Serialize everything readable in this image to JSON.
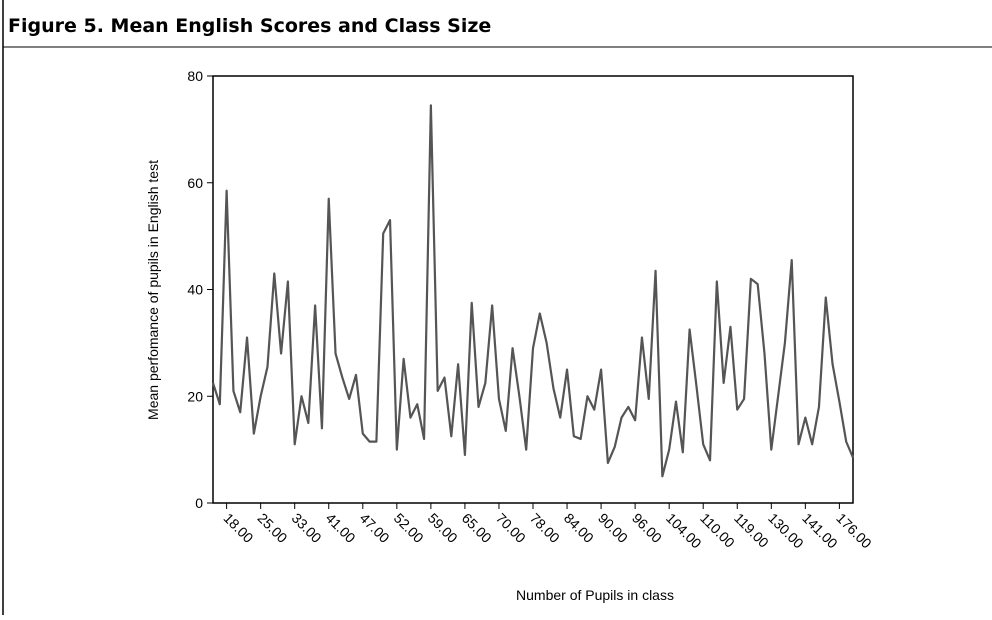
{
  "chart_data": {
    "type": "line",
    "title": "Figure 5.  Mean English Scores and Class Size",
    "xlabel": "Number of Pupils in class",
    "ylabel": "Mean perfomance of pupils in English test",
    "color": "#555555",
    "categories": [
      null,
      null,
      "18.00",
      null,
      null,
      null,
      null,
      "25.00",
      null,
      null,
      null,
      null,
      "33.00",
      null,
      null,
      null,
      null,
      "41.00",
      null,
      null,
      null,
      null,
      "47.00",
      null,
      null,
      null,
      null,
      "52.00",
      null,
      null,
      null,
      null,
      "59.00",
      null,
      null,
      null,
      null,
      "65.00",
      null,
      null,
      null,
      null,
      "70.00",
      null,
      null,
      null,
      null,
      "78.00",
      null,
      null,
      null,
      null,
      "84.00",
      null,
      null,
      null,
      null,
      "90.00",
      null,
      null,
      null,
      null,
      "96.00",
      null,
      null,
      null,
      null,
      "104.00",
      null,
      null,
      null,
      null,
      "110.00",
      null,
      null,
      null,
      null,
      "119.00",
      null,
      null,
      null,
      null,
      "130.00",
      null,
      null,
      null,
      null,
      "141.00",
      null,
      null,
      null,
      null,
      "176.00",
      null,
      null
    ],
    "values": [
      22.5,
      18.5,
      58.5,
      21,
      17,
      31,
      13,
      20,
      25.5,
      43,
      28,
      41.5,
      11,
      20,
      15,
      37,
      14,
      57,
      28,
      23.5,
      19.5,
      24,
      13,
      11.5,
      11.5,
      50.5,
      53,
      10,
      27,
      16,
      18.5,
      12,
      74.5,
      21,
      23.5,
      12.5,
      26,
      9,
      37.5,
      18,
      22.5,
      37,
      19.5,
      13.5,
      29,
      20,
      10,
      29,
      35.5,
      30,
      21.5,
      16,
      25,
      12.5,
      12,
      20,
      17.5,
      25,
      7.5,
      10.5,
      16,
      18,
      15.5,
      31,
      19.5,
      43.5,
      5,
      10,
      19,
      9.5,
      32.5,
      22,
      11,
      8,
      41.5,
      22.5,
      33,
      17.5,
      19.5,
      42,
      41,
      28,
      10,
      20,
      30,
      45.5,
      11,
      16,
      11,
      18,
      38.5,
      26,
      19,
      11.5,
      8.5
    ],
    "ylim": [
      0,
      80
    ],
    "yticks": [
      0,
      20,
      40,
      60,
      80
    ],
    "grid": false
  }
}
